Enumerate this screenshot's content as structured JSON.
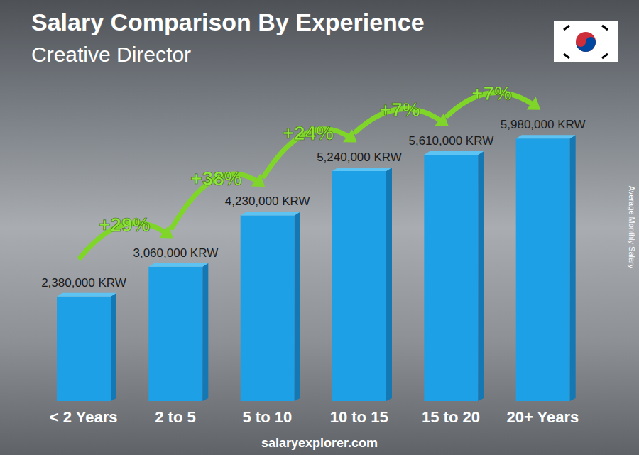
{
  "chart_data": {
    "type": "bar",
    "title": "Salary Comparison By Experience",
    "subtitle": "Creative Director",
    "categories": [
      "< 2 Years",
      "2 to 5",
      "5 to 10",
      "10 to 15",
      "15 to 20",
      "20+ Years"
    ],
    "values": [
      2380000,
      3060000,
      4230000,
      5240000,
      5610000,
      5980000
    ],
    "value_labels": [
      "2,380,000 KRW",
      "3,060,000 KRW",
      "4,230,000 KRW",
      "5,240,000 KRW",
      "5,610,000 KRW",
      "5,980,000 KRW"
    ],
    "data_labels": true,
    "annotations": [
      "+29%",
      "+38%",
      "+24%",
      "+7%",
      "+7%"
    ],
    "y_label": "Average Monthly Salary",
    "source": "salaryexplorer.com",
    "color": "#1ea0e6",
    "ylim": [
      0,
      6500000
    ],
    "tick_labels": "x",
    "grid": false
  }
}
